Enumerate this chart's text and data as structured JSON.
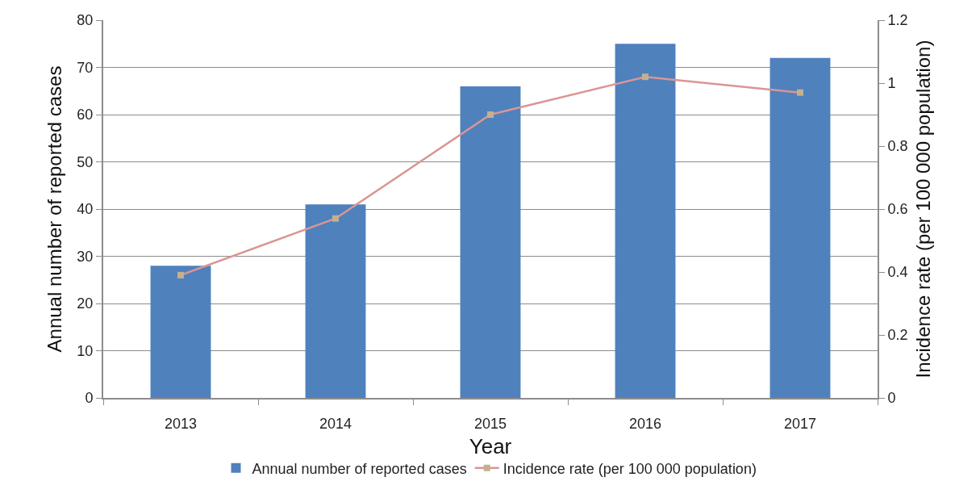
{
  "chart_data": {
    "type": "bar",
    "categories": [
      "2013",
      "2014",
      "2015",
      "2016",
      "2017"
    ],
    "series": [
      {
        "name": "Annual number of reported cases",
        "color": "#4f81bd",
        "values": [
          28,
          41,
          66,
          75,
          72
        ]
      },
      {
        "name": "Incidence rate (per 100 000 population)",
        "type": "line",
        "axis": "y2",
        "color": "#d99694",
        "colors": [
          "#c3b08f",
          "#c3b08f",
          "#c3b08f",
          "#c3b08f",
          "#c3b08f"
        ],
        "marker": "square",
        "line_style": "solid",
        "values": [
          0.39,
          0.57,
          0.9,
          1.02,
          0.97
        ]
      }
    ],
    "xlabel": "Year",
    "ylabel": "Annual number of reported cases",
    "y2label": "Incidence rate (per 100 000 population)",
    "ylim": [
      0,
      80
    ],
    "yticks": [
      0,
      10,
      20,
      30,
      40,
      50,
      60,
      70,
      80
    ],
    "y2lim": [
      0,
      1.2
    ],
    "y2ticks": [
      0,
      0.2,
      0.4,
      0.6,
      0.8,
      1,
      1.2
    ],
    "grid": "y",
    "legend": "bottom"
  }
}
